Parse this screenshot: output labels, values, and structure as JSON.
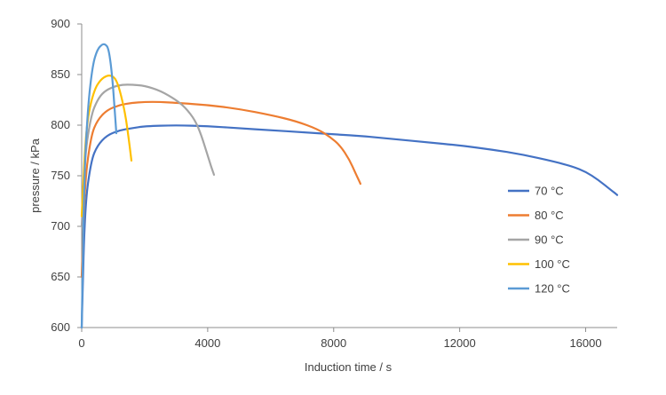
{
  "chart_data": {
    "type": "line",
    "title": "",
    "xlabel": "Induction time / s",
    "ylabel": "pressure  /  kPa",
    "xlim": [
      0,
      17000
    ],
    "ylim": [
      600,
      900
    ],
    "x_ticks": [
      0,
      4000,
      8000,
      12000,
      16000
    ],
    "x_tick_labels": [
      "0",
      "4000",
      "8000",
      "12000",
      "16000"
    ],
    "y_ticks": [
      600,
      650,
      700,
      750,
      800,
      850,
      900
    ],
    "y_tick_labels": [
      "600",
      "650",
      "700",
      "750",
      "800",
      "850",
      "900"
    ],
    "grid": false,
    "legend_position": "right",
    "series": [
      {
        "name": "70 °C",
        "color": "#4472C4",
        "x": [
          0,
          100,
          300,
          500,
          800,
          1200,
          1600,
          2000,
          3000,
          4000,
          5000,
          6000,
          7000,
          8000,
          9000,
          10000,
          11000,
          12000,
          13000,
          14000,
          15000,
          15600,
          16000,
          16400,
          16800,
          17000
        ],
        "y": [
          600,
          720,
          765,
          780,
          790,
          795,
          797,
          799,
          800,
          799,
          797,
          795,
          793,
          791,
          789,
          786,
          783,
          780,
          776,
          771,
          764,
          759,
          754,
          746,
          736,
          731
        ]
      },
      {
        "name": "80 °C",
        "color": "#ED7D31",
        "x": [
          0,
          100,
          300,
          500,
          800,
          1200,
          1600,
          2000,
          2500,
          3000,
          4000,
          5000,
          6000,
          6800,
          7500,
          7900,
          8200,
          8500,
          8700,
          8850
        ],
        "y": [
          650,
          745,
          790,
          805,
          815,
          820,
          822,
          823,
          823,
          822,
          820,
          816,
          810,
          804,
          796,
          788,
          780,
          766,
          752,
          742
        ]
      },
      {
        "name": "90 °C",
        "color": "#A5A5A5",
        "x": [
          0,
          100,
          300,
          500,
          700,
          1000,
          1300,
          1600,
          2000,
          2500,
          3000,
          3300,
          3600,
          3800,
          4000,
          4100,
          4200
        ],
        "y": [
          700,
          770,
          810,
          825,
          833,
          838,
          840,
          840,
          839,
          834,
          825,
          817,
          805,
          790,
          770,
          760,
          751
        ]
      },
      {
        "name": "100 °C",
        "color": "#FFC000",
        "x": [
          0,
          100,
          200,
          400,
          600,
          800,
          950,
          1100,
          1250,
          1400,
          1500,
          1580
        ],
        "y": [
          710,
          775,
          810,
          835,
          845,
          849,
          849,
          845,
          830,
          808,
          785,
          765
        ]
      },
      {
        "name": "120 °C",
        "color": "#5B9BD5",
        "x": [
          0,
          80,
          200,
          350,
          500,
          650,
          750,
          850,
          950,
          1050,
          1100
        ],
        "y": [
          600,
          750,
          820,
          860,
          875,
          880,
          880,
          876,
          855,
          815,
          792
        ]
      }
    ]
  }
}
